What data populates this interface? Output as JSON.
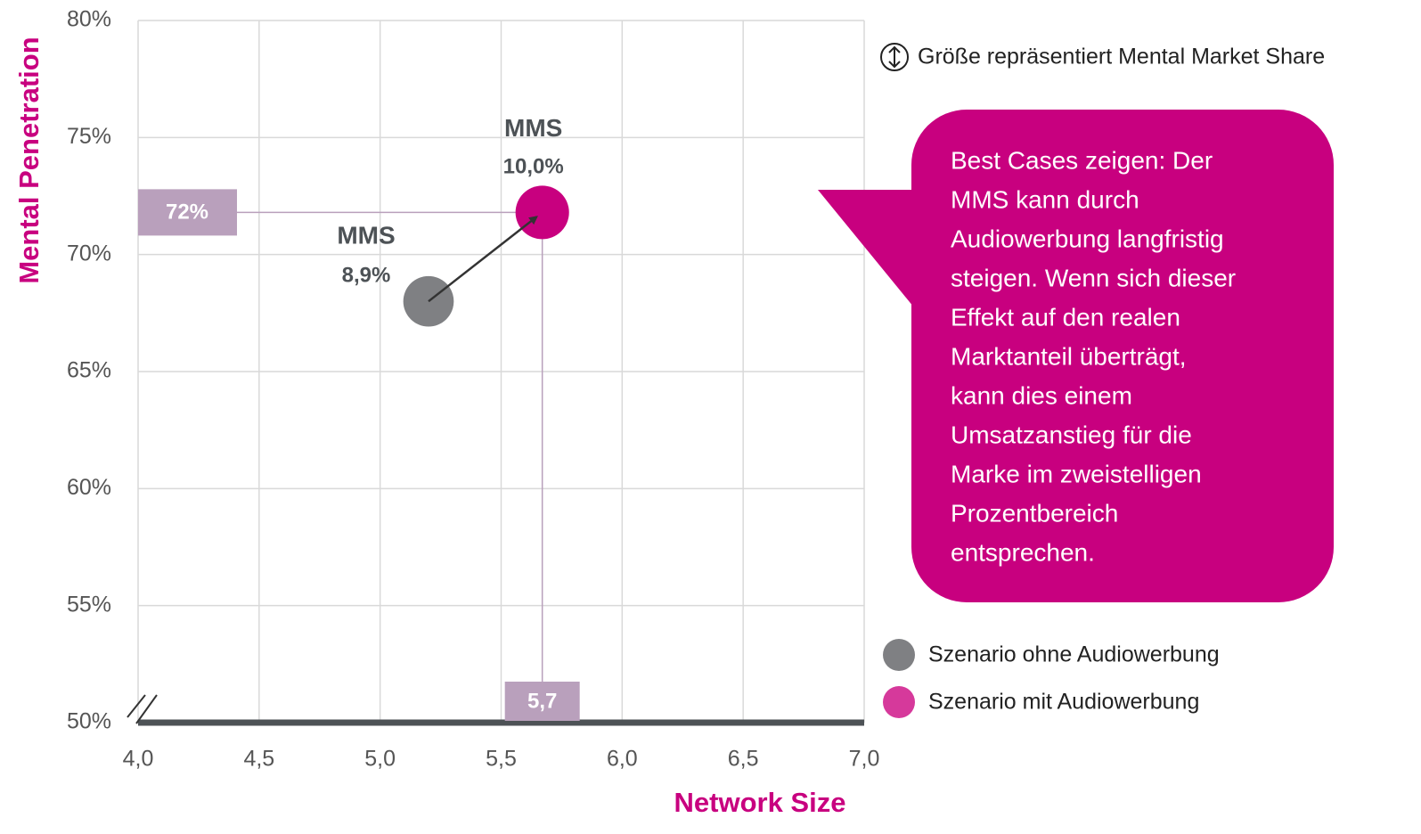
{
  "chart_data": {
    "type": "bubble",
    "x_label": "Network Size",
    "y_label": "Mental Penetration",
    "size_note": "Größe repräsentiert Mental Market Share",
    "xlim": [
      4.0,
      7.0
    ],
    "xticks": [
      {
        "value": 4.0,
        "label": "4,0"
      },
      {
        "value": 4.5,
        "label": "4,5"
      },
      {
        "value": 5.0,
        "label": "5,0"
      },
      {
        "value": 5.5,
        "label": "5,5"
      },
      {
        "value": 6.0,
        "label": "6,0"
      },
      {
        "value": 6.5,
        "label": "6,5"
      },
      {
        "value": 7.0,
        "label": "7,0"
      }
    ],
    "ylim": [
      50,
      80
    ],
    "yticks": [
      {
        "value": 50,
        "label": "50%"
      },
      {
        "value": 55,
        "label": "55%"
      },
      {
        "value": 60,
        "label": "60%"
      },
      {
        "value": 65,
        "label": "65%"
      },
      {
        "value": 70,
        "label": "70%"
      },
      {
        "value": 75,
        "label": "75%"
      },
      {
        "value": 80,
        "label": "80%"
      }
    ],
    "grid": true,
    "series": [
      {
        "name": "Szenario ohne Audiowerbung",
        "color": "#7f8083",
        "x": [
          5.2
        ],
        "values": [
          68
        ],
        "sizes": [
          8.9
        ],
        "size_labels": [
          "8,9%"
        ],
        "labels": [
          "MMS"
        ]
      },
      {
        "name": "Szenario mit Audiowerbung",
        "color": "#c8007f",
        "x": [
          5.67
        ],
        "values": [
          71.8
        ],
        "sizes": [
          10.0
        ],
        "size_labels": [
          "10,0%"
        ],
        "labels": [
          "MMS"
        ],
        "value_labels": [
          "72%"
        ],
        "x_value_labels": [
          "5,7"
        ]
      }
    ],
    "callout": [
      "Best Cases zeigen: Der",
      "MMS kann durch",
      "Audiowerbung langfristig",
      "steigen. Wenn sich dieser",
      "Effekt auf den realen",
      "Marktanteil überträgt,",
      "kann dies einem",
      "Umsatzanstieg für die",
      "Marke im zweistelligen",
      "Prozentbereich",
      "entsprechen."
    ]
  }
}
